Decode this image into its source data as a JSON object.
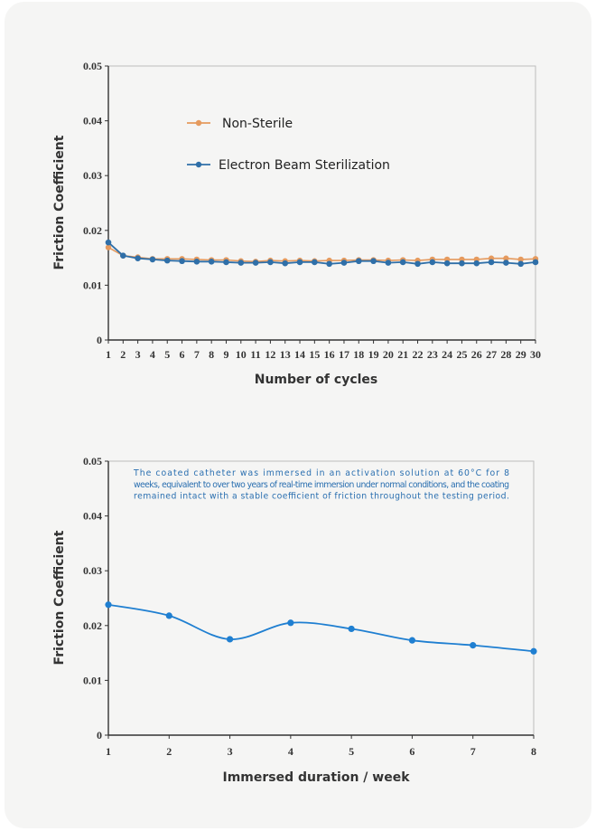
{
  "chart_data": [
    {
      "type": "line",
      "title": "",
      "xlabel": "Number of cycles",
      "ylabel": "Friction Coefficient",
      "x": [
        1,
        2,
        3,
        4,
        5,
        6,
        7,
        8,
        9,
        10,
        11,
        12,
        13,
        14,
        15,
        16,
        17,
        18,
        19,
        20,
        21,
        22,
        23,
        24,
        25,
        26,
        27,
        28,
        29,
        30
      ],
      "ylim": [
        0,
        0.05
      ],
      "yticks": [
        "0",
        "0.01",
        "0.02",
        "0.03",
        "0.04",
        "0.05"
      ],
      "xticks": [
        "1",
        "2",
        "3",
        "4",
        "5",
        "6",
        "7",
        "8",
        "9",
        "10",
        "11",
        "12",
        "13",
        "14",
        "15",
        "16",
        "17",
        "18",
        "19",
        "20",
        "21",
        "22",
        "23",
        "24",
        "25",
        "26",
        "27",
        "28",
        "29",
        "30"
      ],
      "legend_position": "upper-left",
      "series": [
        {
          "name": "Non-Sterile",
          "color": "#e59a5e",
          "values": [
            0.0169,
            0.0154,
            0.0151,
            0.0148,
            0.0148,
            0.0148,
            0.0147,
            0.0146,
            0.0146,
            0.0144,
            0.0143,
            0.0145,
            0.0144,
            0.0145,
            0.0144,
            0.0145,
            0.0145,
            0.0146,
            0.0146,
            0.0145,
            0.0146,
            0.0145,
            0.0147,
            0.0147,
            0.0147,
            0.0147,
            0.0149,
            0.0149,
            0.0147,
            0.0148
          ]
        },
        {
          "name": "Electron Beam Sterilization",
          "color": "#2f6fa8",
          "values": [
            0.0178,
            0.0154,
            0.0149,
            0.0147,
            0.0145,
            0.0144,
            0.0143,
            0.0143,
            0.0142,
            0.0141,
            0.0141,
            0.0142,
            0.014,
            0.0142,
            0.0142,
            0.0139,
            0.0141,
            0.0144,
            0.0144,
            0.0141,
            0.0142,
            0.0139,
            0.0142,
            0.014,
            0.014,
            0.014,
            0.0142,
            0.0141,
            0.0139,
            0.0142
          ]
        }
      ]
    },
    {
      "type": "line",
      "title": "",
      "xlabel": "Immersed duration / week",
      "ylabel": "Friction Coefficient",
      "x": [
        1,
        2,
        3,
        4,
        5,
        6,
        7,
        8
      ],
      "ylim": [
        0,
        0.05
      ],
      "yticks": [
        "0",
        "0.01",
        "0.02",
        "0.03",
        "0.04",
        "0.05"
      ],
      "xticks": [
        "1",
        "2",
        "3",
        "4",
        "5",
        "6",
        "7",
        "8"
      ],
      "annotation": "The coated catheter was immersed in an activation solution at 60°C for 8 weeks, equivalent to over two years of real-time immersion under normal conditions, and the coating remained intact with a stable coefficient of friction throughout the testing period.",
      "series": [
        {
          "name": "Friction Coefficient",
          "color": "#1f7fd1",
          "values": [
            0.0238,
            0.0218,
            0.0175,
            0.0205,
            0.0194,
            0.0173,
            0.0164,
            0.0153
          ]
        }
      ]
    }
  ]
}
